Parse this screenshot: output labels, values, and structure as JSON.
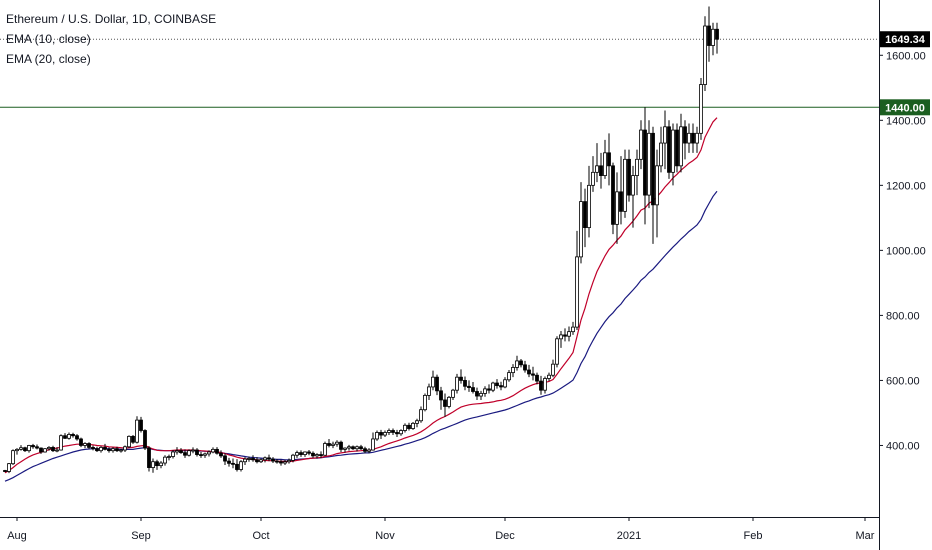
{
  "header": {
    "title": "Ethereum / U.S. Dollar, 1D, COINBASE",
    "indicators": [
      "EMA (10, close)",
      "EMA (20, close)"
    ]
  },
  "colors": {
    "up_body": "#ffffff",
    "down_body": "#000000",
    "wick": "#000000",
    "ema10": "#c0002a",
    "ema20": "#1a1a80",
    "level_line": "#1b5e20",
    "last_price_tag": "#000000",
    "level_tag": "#1b5e20",
    "axis_line": "#131722"
  },
  "chart_data": {
    "type": "candlestick",
    "title": "Ethereum / U.S. Dollar, 1D, COINBASE",
    "y_ticks": [
      "400.00",
      "600.00",
      "800.00",
      "1000.00",
      "1200.00",
      "1400.00",
      "1600.00"
    ],
    "y_tick_values": [
      400,
      600,
      800,
      1000,
      1200,
      1400,
      1600
    ],
    "ylim": [
      180,
      1770
    ],
    "x_ticks": [
      {
        "label": "Aug",
        "date": "2020-08-01"
      },
      {
        "label": "Sep",
        "date": "2020-09-01"
      },
      {
        "label": "Oct",
        "date": "2020-10-01"
      },
      {
        "label": "Nov",
        "date": "2020-11-01"
      },
      {
        "label": "Dec",
        "date": "2020-12-01"
      },
      {
        "label": "2021",
        "date": "2021-01-01"
      },
      {
        "label": "Feb",
        "date": "2021-02-01"
      },
      {
        "label": "Mar",
        "date": "2021-03-01"
      }
    ],
    "xlim": [
      "2020-07-29",
      "2021-03-07"
    ],
    "last_price": {
      "value": 1649.34,
      "label": "1649.34"
    },
    "horizontal_level": {
      "value": 1440.0,
      "label": "1440.00"
    },
    "start_date": "2020-07-29",
    "candles": [
      [
        323,
        325,
        318,
        320
      ],
      [
        320,
        346,
        315,
        344
      ],
      [
        344,
        388,
        340,
        384
      ],
      [
        384,
        392,
        372,
        388
      ],
      [
        388,
        401,
        384,
        393
      ],
      [
        393,
        396,
        380,
        384
      ],
      [
        384,
        402,
        378,
        400
      ],
      [
        400,
        405,
        390,
        396
      ],
      [
        396,
        403,
        388,
        392
      ],
      [
        392,
        394,
        374,
        380
      ],
      [
        380,
        392,
        378,
        390
      ],
      [
        390,
        398,
        384,
        394
      ],
      [
        394,
        399,
        380,
        384
      ],
      [
        384,
        395,
        379,
        386
      ],
      [
        386,
        434,
        384,
        430
      ],
      [
        430,
        438,
        420,
        422
      ],
      [
        422,
        440,
        418,
        434
      ],
      [
        434,
        439,
        424,
        430
      ],
      [
        430,
        435,
        415,
        420
      ],
      [
        420,
        424,
        395,
        400
      ],
      [
        400,
        410,
        392,
        406
      ],
      [
        406,
        410,
        390,
        394
      ],
      [
        394,
        400,
        385,
        390
      ],
      [
        390,
        396,
        380,
        384
      ],
      [
        384,
        398,
        378,
        394
      ],
      [
        394,
        405,
        385,
        388
      ],
      [
        388,
        394,
        378,
        384
      ],
      [
        384,
        395,
        378,
        390
      ],
      [
        390,
        396,
        380,
        384
      ],
      [
        384,
        390,
        378,
        386
      ],
      [
        386,
        400,
        380,
        396
      ],
      [
        396,
        431,
        392,
        428
      ],
      [
        428,
        432,
        405,
        410
      ],
      [
        410,
        490,
        406,
        478
      ],
      [
        478,
        488,
        440,
        446
      ],
      [
        446,
        450,
        386,
        392
      ],
      [
        392,
        398,
        320,
        332
      ],
      [
        332,
        360,
        316,
        350
      ],
      [
        350,
        356,
        325,
        338
      ],
      [
        338,
        352,
        330,
        346
      ],
      [
        346,
        370,
        338,
        364
      ],
      [
        364,
        372,
        354,
        366
      ],
      [
        366,
        386,
        360,
        380
      ],
      [
        380,
        395,
        372,
        384
      ],
      [
        384,
        392,
        374,
        378
      ],
      [
        378,
        388,
        362,
        370
      ],
      [
        370,
        388,
        366,
        384
      ],
      [
        384,
        394,
        376,
        386
      ],
      [
        386,
        392,
        366,
        372
      ],
      [
        372,
        380,
        362,
        370
      ],
      [
        370,
        378,
        362,
        374
      ],
      [
        374,
        385,
        366,
        380
      ],
      [
        380,
        394,
        376,
        388
      ],
      [
        388,
        395,
        372,
        376
      ],
      [
        376,
        385,
        362,
        368
      ],
      [
        368,
        376,
        340,
        352
      ],
      [
        352,
        362,
        335,
        345
      ],
      [
        345,
        360,
        330,
        342
      ],
      [
        342,
        358,
        320,
        326
      ],
      [
        326,
        355,
        320,
        350
      ],
      [
        350,
        364,
        340,
        358
      ],
      [
        358,
        366,
        350,
        360
      ],
      [
        360,
        370,
        350,
        356
      ],
      [
        356,
        364,
        345,
        350
      ],
      [
        350,
        360,
        346,
        356
      ],
      [
        356,
        366,
        348,
        362
      ],
      [
        362,
        372,
        352,
        358
      ],
      [
        358,
        364,
        346,
        352
      ],
      [
        352,
        358,
        344,
        350
      ],
      [
        350,
        356,
        338,
        346
      ],
      [
        346,
        356,
        340,
        350
      ],
      [
        350,
        360,
        344,
        354
      ],
      [
        354,
        374,
        348,
        370
      ],
      [
        370,
        384,
        362,
        378
      ],
      [
        378,
        385,
        365,
        372
      ],
      [
        372,
        382,
        365,
        380
      ],
      [
        380,
        386,
        370,
        376
      ],
      [
        376,
        382,
        362,
        368
      ],
      [
        368,
        376,
        360,
        372
      ],
      [
        372,
        382,
        362,
        370
      ],
      [
        370,
        412,
        368,
        406
      ],
      [
        406,
        420,
        394,
        400
      ],
      [
        400,
        412,
        392,
        404
      ],
      [
        404,
        416,
        396,
        410
      ],
      [
        410,
        415,
        380,
        388
      ],
      [
        388,
        394,
        378,
        392
      ],
      [
        392,
        402,
        384,
        396
      ],
      [
        396,
        400,
        386,
        390
      ],
      [
        390,
        400,
        382,
        396
      ],
      [
        396,
        402,
        386,
        390
      ],
      [
        390,
        396,
        376,
        382
      ],
      [
        382,
        392,
        376,
        386
      ],
      [
        386,
        440,
        384,
        420
      ],
      [
        420,
        446,
        414,
        440
      ],
      [
        440,
        448,
        420,
        432
      ],
      [
        432,
        446,
        426,
        440
      ],
      [
        440,
        452,
        432,
        446
      ],
      [
        446,
        452,
        432,
        440
      ],
      [
        440,
        448,
        426,
        436
      ],
      [
        436,
        450,
        430,
        446
      ],
      [
        446,
        468,
        440,
        462
      ],
      [
        462,
        470,
        446,
        452
      ],
      [
        452,
        472,
        448,
        468
      ],
      [
        468,
        482,
        456,
        476
      ],
      [
        476,
        520,
        470,
        510
      ],
      [
        510,
        560,
        505,
        554
      ],
      [
        554,
        590,
        540,
        580
      ],
      [
        580,
        630,
        570,
        610
      ],
      [
        610,
        618,
        555,
        568
      ],
      [
        568,
        580,
        510,
        540
      ],
      [
        540,
        560,
        488,
        520
      ],
      [
        520,
        552,
        514,
        548
      ],
      [
        548,
        574,
        540,
        570
      ],
      [
        570,
        620,
        560,
        610
      ],
      [
        610,
        634,
        590,
        600
      ],
      [
        600,
        612,
        570,
        582
      ],
      [
        582,
        600,
        565,
        578
      ],
      [
        578,
        595,
        560,
        566
      ],
      [
        566,
        578,
        540,
        552
      ],
      [
        552,
        568,
        540,
        560
      ],
      [
        560,
        582,
        550,
        574
      ],
      [
        574,
        588,
        560,
        570
      ],
      [
        570,
        596,
        564,
        592
      ],
      [
        592,
        604,
        575,
        584
      ],
      [
        584,
        596,
        570,
        580
      ],
      [
        580,
        610,
        576,
        602
      ],
      [
        602,
        632,
        596,
        624
      ],
      [
        624,
        650,
        610,
        640
      ],
      [
        640,
        676,
        630,
        660
      ],
      [
        660,
        666,
        640,
        648
      ],
      [
        648,
        660,
        624,
        632
      ],
      [
        632,
        648,
        610,
        620
      ],
      [
        620,
        642,
        600,
        616
      ],
      [
        616,
        624,
        588,
        598
      ],
      [
        598,
        614,
        556,
        570
      ],
      [
        570,
        612,
        560,
        606
      ],
      [
        606,
        624,
        598,
        616
      ],
      [
        616,
        664,
        610,
        650
      ],
      [
        650,
        736,
        640,
        728
      ],
      [
        728,
        752,
        700,
        740
      ],
      [
        740,
        760,
        720,
        736
      ],
      [
        736,
        766,
        720,
        750
      ],
      [
        750,
        780,
        740,
        764
      ],
      [
        764,
        1060,
        755,
        980
      ],
      [
        980,
        1210,
        960,
        1150
      ],
      [
        1150,
        1190,
        1010,
        1070
      ],
      [
        1070,
        1260,
        1040,
        1200
      ],
      [
        1200,
        1290,
        1180,
        1240
      ],
      [
        1240,
        1330,
        1210,
        1260
      ],
      [
        1260,
        1300,
        1190,
        1230
      ],
      [
        1230,
        1340,
        1220,
        1300
      ],
      [
        1300,
        1360,
        1200,
        1260
      ],
      [
        1260,
        1270,
        1050,
        1080
      ],
      [
        1080,
        1240,
        1020,
        1180
      ],
      [
        1180,
        1290,
        1080,
        1120
      ],
      [
        1120,
        1310,
        1100,
        1280
      ],
      [
        1280,
        1310,
        1150,
        1170
      ],
      [
        1170,
        1260,
        1070,
        1230
      ],
      [
        1230,
        1310,
        1170,
        1280
      ],
      [
        1280,
        1400,
        1250,
        1370
      ],
      [
        1370,
        1440,
        1080,
        1170
      ],
      [
        1170,
        1400,
        1130,
        1360
      ],
      [
        1360,
        1380,
        1020,
        1140
      ],
      [
        1140,
        1310,
        1040,
        1260
      ],
      [
        1260,
        1380,
        1240,
        1330
      ],
      [
        1330,
        1430,
        1250,
        1380
      ],
      [
        1380,
        1400,
        1220,
        1240
      ],
      [
        1240,
        1390,
        1200,
        1370
      ],
      [
        1370,
        1390,
        1240,
        1260
      ],
      [
        1260,
        1420,
        1240,
        1380
      ],
      [
        1380,
        1400,
        1280,
        1330
      ],
      [
        1330,
        1390,
        1300,
        1360
      ],
      [
        1360,
        1390,
        1300,
        1330
      ],
      [
        1330,
        1380,
        1300,
        1360
      ],
      [
        1360,
        1530,
        1340,
        1510
      ],
      [
        1510,
        1720,
        1490,
        1690
      ],
      [
        1690,
        1750,
        1580,
        1630
      ],
      [
        1630,
        1700,
        1600,
        1680
      ],
      [
        1680,
        1700,
        1605,
        1649.34
      ]
    ],
    "ema10": [
      316,
      323,
      332,
      342,
      350,
      358,
      365,
      371,
      375,
      379,
      383,
      387,
      390,
      392,
      395,
      398,
      400,
      402,
      404,
      404,
      404,
      403,
      402,
      400,
      399,
      398,
      396,
      395,
      394,
      393,
      392,
      393,
      394,
      397,
      399,
      400,
      394,
      389,
      385,
      384,
      384,
      384,
      385,
      386,
      386,
      386,
      386,
      386,
      385,
      384,
      383,
      382,
      381,
      380,
      378,
      375,
      371,
      368,
      364,
      361,
      359,
      358,
      357,
      356,
      355,
      354,
      353,
      353,
      352,
      351,
      351,
      350,
      352,
      354,
      356,
      358,
      360,
      361,
      362,
      363,
      366,
      368,
      371,
      375,
      377,
      379,
      381,
      382,
      383,
      384,
      385,
      385,
      388,
      392,
      396,
      401,
      406,
      410,
      414,
      418,
      423,
      427,
      431,
      436,
      442,
      450,
      459,
      469,
      477,
      484,
      489,
      496,
      503,
      511,
      518,
      522,
      525,
      527,
      528,
      529,
      531,
      532,
      534,
      537,
      539,
      542,
      547,
      553,
      561,
      569,
      576,
      582,
      587,
      591,
      592,
      594,
      597,
      603,
      619,
      636,
      652,
      668,
      686,
      735,
      786,
      822,
      866,
      902,
      935,
      959,
      983,
      1003,
      1016,
      1031,
      1044,
      1063,
      1076,
      1090,
      1106,
      1124,
      1130,
      1145,
      1152,
      1165,
      1179,
      1195,
      1208,
      1223,
      1234,
      1247,
      1257,
      1268,
      1276,
      1286,
      1309,
      1348,
      1372,
      1395,
      1408
    ],
    "ema20": [
      290,
      295,
      301,
      308,
      315,
      322,
      329,
      335,
      340,
      345,
      350,
      355,
      360,
      364,
      368,
      372,
      376,
      380,
      383,
      386,
      388,
      389,
      390,
      390,
      390,
      390,
      390,
      389,
      389,
      388,
      388,
      388,
      388,
      390,
      392,
      393,
      391,
      388,
      386,
      385,
      384,
      384,
      384,
      384,
      384,
      384,
      384,
      384,
      383,
      383,
      382,
      382,
      381,
      380,
      378,
      376,
      374,
      372,
      370,
      368,
      366,
      364,
      363,
      362,
      361,
      360,
      359,
      358,
      357,
      357,
      356,
      356,
      356,
      357,
      358,
      359,
      360,
      361,
      361,
      362,
      364,
      365,
      367,
      369,
      370,
      372,
      373,
      374,
      375,
      376,
      377,
      377,
      379,
      382,
      385,
      388,
      391,
      394,
      397,
      400,
      404,
      407,
      411,
      415,
      419,
      424,
      430,
      437,
      443,
      449,
      453,
      458,
      463,
      468,
      473,
      478,
      482,
      485,
      488,
      491,
      494,
      497,
      500,
      503,
      506,
      509,
      513,
      518,
      523,
      528,
      533,
      537,
      542,
      546,
      549,
      553,
      556,
      561,
      568,
      576,
      584,
      592,
      601,
      624,
      652,
      673,
      700,
      723,
      745,
      763,
      781,
      796,
      808,
      823,
      835,
      852,
      865,
      878,
      892,
      908,
      918,
      932,
      942,
      956,
      970,
      984,
      997,
      1010,
      1022,
      1035,
      1046,
      1058,
      1068,
      1078,
      1095,
      1122,
      1144,
      1166,
      1182
    ]
  }
}
